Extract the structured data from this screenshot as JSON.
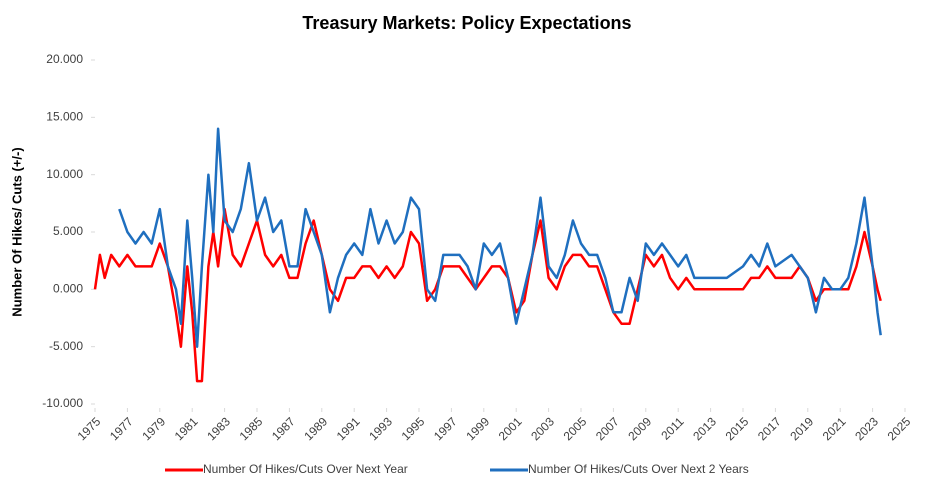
{
  "chart_data": {
    "type": "line",
    "title": "Treasury Markets: Policy Expectations",
    "y_label": "Number Of Hikes/ Cuts (+/-)",
    "legend": "bottom",
    "xlim": [
      1975,
      2025
    ],
    "xticks": [
      1975,
      1977,
      1979,
      1981,
      1983,
      1985,
      1987,
      1989,
      1991,
      1993,
      1995,
      1997,
      1999,
      2001,
      2003,
      2005,
      2007,
      2009,
      2011,
      2013,
      2015,
      2017,
      2019,
      2021,
      2023,
      2025
    ],
    "ylim": [
      -10,
      20
    ],
    "yticks": [
      {
        "value": -10,
        "label": "-10.000"
      },
      {
        "value": -5,
        "label": "-5.000"
      },
      {
        "value": 0,
        "label": "0.000"
      },
      {
        "value": 5,
        "label": "5.000"
      },
      {
        "value": 10,
        "label": "10.000"
      },
      {
        "value": 15,
        "label": "15.000"
      },
      {
        "value": 20,
        "label": "20.000"
      }
    ],
    "series": [
      {
        "name": "Number Of Hikes/Cuts Over Next Year",
        "color": "#ff0000",
        "x": [
          1975,
          1975.3,
          1975.6,
          1976,
          1976.5,
          1977,
          1977.5,
          1978,
          1978.5,
          1979,
          1979.5,
          1980,
          1980.3,
          1980.7,
          1981,
          1981.3,
          1981.6,
          1982,
          1982.3,
          1982.6,
          1983,
          1983.5,
          1984,
          1984.5,
          1985,
          1985.5,
          1986,
          1986.5,
          1987,
          1987.5,
          1988,
          1988.5,
          1989,
          1989.5,
          1990,
          1990.5,
          1991,
          1991.5,
          1992,
          1992.5,
          1993,
          1993.5,
          1994,
          1994.5,
          1995,
          1995.5,
          1996,
          1996.5,
          1997,
          1997.5,
          1998,
          1998.5,
          1999,
          1999.5,
          2000,
          2000.5,
          2001,
          2001.5,
          2002,
          2002.5,
          2003,
          2003.5,
          2004,
          2004.5,
          2005,
          2005.5,
          2006,
          2006.5,
          2007,
          2007.5,
          2008,
          2008.5,
          2009,
          2009.5,
          2010,
          2010.5,
          2011,
          2011.5,
          2012,
          2013,
          2014,
          2015,
          2015.5,
          2016,
          2016.5,
          2017,
          2018,
          2018.5,
          2019,
          2019.5,
          2020,
          2020.5,
          2021,
          2021.5,
          2022,
          2022.5,
          2023,
          2023.3,
          2023.5
        ],
        "values": [
          0,
          3,
          1,
          3,
          2,
          3,
          2,
          2,
          2,
          4,
          2,
          -2,
          -5,
          2,
          -2,
          -8,
          -8,
          2,
          5,
          2,
          7,
          3,
          2,
          4,
          6,
          3,
          2,
          3,
          1,
          1,
          4,
          6,
          3,
          0,
          -1,
          1,
          1,
          2,
          2,
          1,
          2,
          1,
          2,
          5,
          4,
          -1,
          0,
          2,
          2,
          2,
          1,
          0,
          1,
          2,
          2,
          1,
          -2,
          -1,
          3,
          6,
          1,
          0,
          2,
          3,
          3,
          2,
          2,
          0,
          -2,
          -3,
          -3,
          0,
          3,
          2,
          3,
          1,
          0,
          1,
          0,
          0,
          0,
          0,
          1,
          1,
          2,
          1,
          1,
          2,
          1,
          -1,
          0,
          0,
          0,
          0,
          2,
          5,
          2,
          0,
          -1
        ]
      },
      {
        "name": "Number Of Hikes/Cuts Over Next 2 Years",
        "color": "#1f6fbf",
        "x": [
          1976.5,
          1977,
          1977.5,
          1978,
          1978.5,
          1979,
          1979.5,
          1980,
          1980.3,
          1980.7,
          1981,
          1981.3,
          1981.6,
          1982,
          1982.3,
          1982.6,
          1983,
          1983.5,
          1984,
          1984.5,
          1985,
          1985.5,
          1986,
          1986.5,
          1987,
          1987.5,
          1988,
          1988.5,
          1989,
          1989.5,
          1990,
          1990.5,
          1991,
          1991.5,
          1992,
          1992.5,
          1993,
          1993.5,
          1994,
          1994.5,
          1995,
          1995.5,
          1996,
          1996.5,
          1997,
          1997.5,
          1998,
          1998.5,
          1999,
          1999.5,
          2000,
          2000.5,
          2001,
          2001.5,
          2002,
          2002.5,
          2003,
          2003.5,
          2004,
          2004.5,
          2005,
          2005.5,
          2006,
          2006.5,
          2007,
          2007.5,
          2008,
          2008.5,
          2009,
          2009.5,
          2010,
          2010.5,
          2011,
          2011.5,
          2012,
          2013,
          2014,
          2015,
          2015.5,
          2016,
          2016.5,
          2017,
          2018,
          2018.5,
          2019,
          2019.5,
          2020,
          2020.5,
          2021,
          2021.5,
          2022,
          2022.5,
          2023,
          2023.3,
          2023.5
        ],
        "values": [
          7,
          5,
          4,
          5,
          4,
          7,
          2,
          0,
          -3,
          6,
          1,
          -5,
          2,
          10,
          5,
          14,
          6,
          5,
          7,
          11,
          6,
          8,
          5,
          6,
          2,
          2,
          7,
          5,
          3,
          -2,
          1,
          3,
          4,
          3,
          7,
          4,
          6,
          4,
          5,
          8,
          7,
          0,
          -1,
          3,
          3,
          3,
          2,
          0,
          4,
          3,
          4,
          1,
          -3,
          0,
          3,
          8,
          2,
          1,
          3,
          6,
          4,
          3,
          3,
          1,
          -2,
          -2,
          1,
          -1,
          4,
          3,
          4,
          3,
          2,
          3,
          1,
          1,
          1,
          2,
          3,
          2,
          4,
          2,
          3,
          2,
          1,
          -2,
          1,
          0,
          0,
          1,
          4,
          8,
          2,
          -2,
          -4
        ]
      }
    ]
  }
}
